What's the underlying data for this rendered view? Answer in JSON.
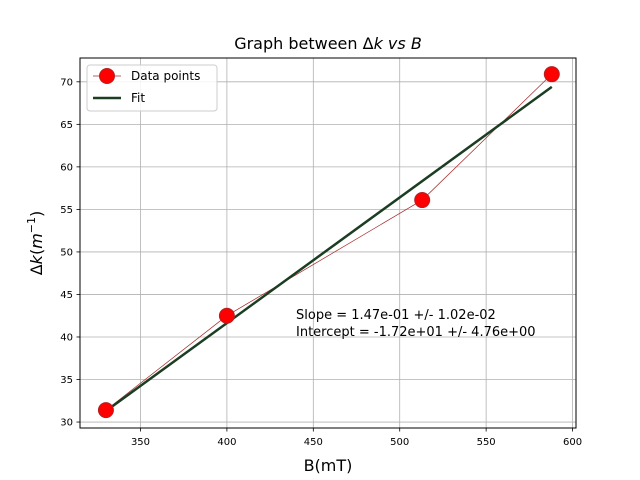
{
  "chart_data": {
    "type": "line",
    "title": "Graph between Δk vs B",
    "title_parts": {
      "lead": "Graph between Δ",
      "k": "k",
      "vs": " vs ",
      "b": "B"
    },
    "xlabel": "B(mT)",
    "ylabel_parts": {
      "delta": "Δ",
      "k": "k",
      "open": "(",
      "m": "m",
      "sup": "−1",
      "close": ")"
    },
    "xlim": [
      315,
      602
    ],
    "ylim": [
      29.3,
      72.8
    ],
    "x_ticks": [
      350,
      400,
      450,
      500,
      550,
      600
    ],
    "y_ticks": [
      30,
      35,
      40,
      45,
      50,
      55,
      60,
      65,
      70
    ],
    "grid": true,
    "legend_position": "top-left",
    "series": [
      {
        "name": "Data points",
        "kind": "points",
        "color": "#ff0000",
        "line_color": "#a52a2a",
        "x": [
          330,
          400,
          513,
          588
        ],
        "y": [
          31.4,
          42.5,
          56.1,
          70.9
        ]
      },
      {
        "name": "Fit",
        "kind": "line",
        "color": "#1b3d22",
        "x": [
          330,
          588
        ],
        "y": [
          31.3,
          69.4
        ]
      }
    ],
    "annotations": [
      "Slope = 1.47e-01 +/- 1.02e-02",
      "Intercept = -1.72e+01 +/- 4.76e+00"
    ]
  }
}
